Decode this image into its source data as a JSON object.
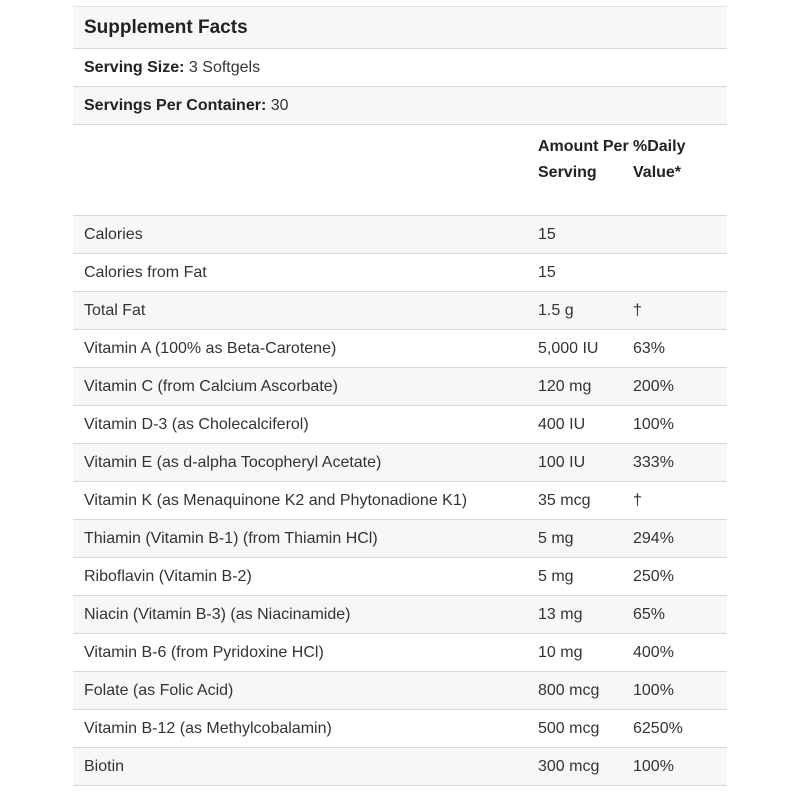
{
  "colors": {
    "stripe": "#f7f7f7",
    "row_bg": "#ffffff",
    "separator": "#d8d8d8",
    "top_line": "#e4e4e4",
    "text": "#333333",
    "heading_text": "#222222"
  },
  "header": {
    "title": "Supplement Facts",
    "serving_size_label": "Serving Size:",
    "serving_size_value": " 3 Softgels",
    "servings_per_container_label": "Servings Per Container:",
    "servings_per_container_value": " 30"
  },
  "table": {
    "columns": {
      "nutrient": "",
      "amount": "Amount Per Serving",
      "daily_value": "%Daily Value*"
    },
    "rows": [
      {
        "label": "Calories",
        "amount": "15",
        "daily_value": ""
      },
      {
        "label": "Calories from Fat",
        "amount": "15",
        "daily_value": ""
      },
      {
        "label": "Total Fat",
        "amount": "1.5 g",
        "daily_value": "†"
      },
      {
        "label": "Vitamin A (100% as Beta-Carotene)",
        "amount": "5,000 IU",
        "daily_value": "63%"
      },
      {
        "label": "Vitamin C (from Calcium Ascorbate)",
        "amount": "120 mg",
        "daily_value": "200%"
      },
      {
        "label": "Vitamin D-3 (as Cholecalciferol)",
        "amount": "400 IU",
        "daily_value": "100%"
      },
      {
        "label": "Vitamin E (as d-alpha Tocopheryl Acetate)",
        "amount": "100 IU",
        "daily_value": "333%"
      },
      {
        "label": "Vitamin K (as Menaquinone K2 and Phytonadione K1)",
        "amount": "35 mcg",
        "daily_value": "†"
      },
      {
        "label": "Thiamin (Vitamin B-1) (from Thiamin HCl)",
        "amount": "5 mg",
        "daily_value": "294%"
      },
      {
        "label": "Riboflavin (Vitamin B-2)",
        "amount": "5 mg",
        "daily_value": "250%"
      },
      {
        "label": "Niacin (Vitamin B-3) (as Niacinamide)",
        "amount": "13 mg",
        "daily_value": "65%"
      },
      {
        "label": "Vitamin B-6 (from Pyridoxine HCl)",
        "amount": "10 mg",
        "daily_value": "400%"
      },
      {
        "label": "Folate (as Folic Acid)",
        "amount": "800 mcg",
        "daily_value": "100%"
      },
      {
        "label": "Vitamin B-12 (as Methylcobalamin)",
        "amount": "500 mcg",
        "daily_value": "6250%"
      },
      {
        "label": "Biotin",
        "amount": "300 mcg",
        "daily_value": "100%"
      }
    ]
  }
}
